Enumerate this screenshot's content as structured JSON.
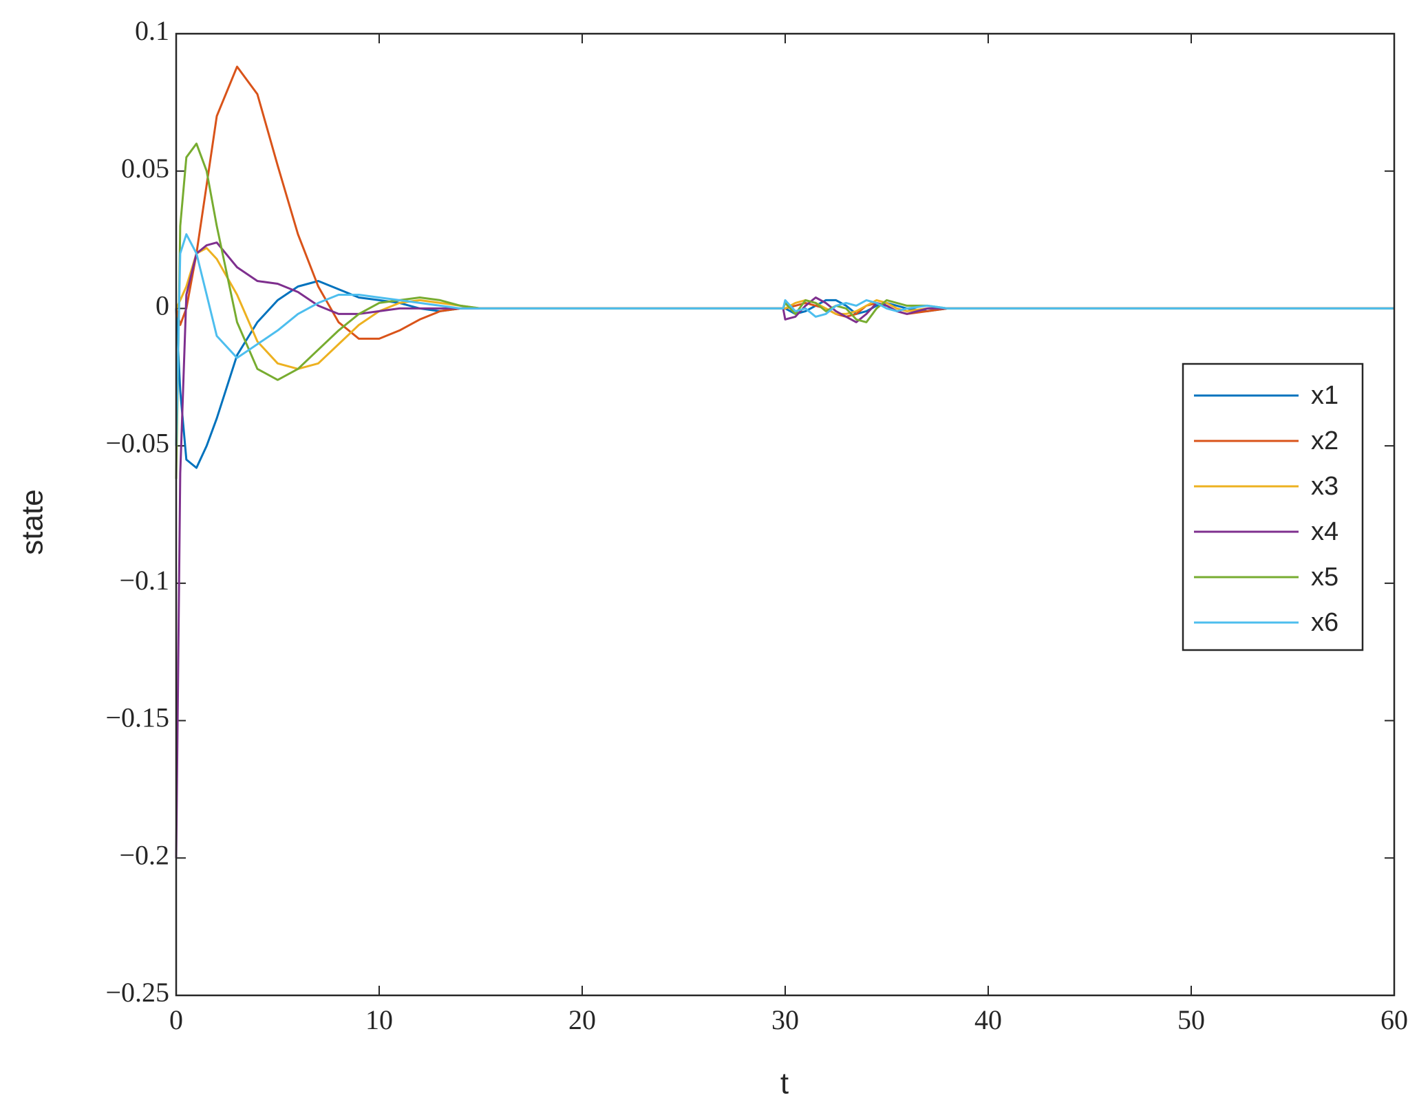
{
  "chart_data": {
    "type": "line",
    "xlabel": "t",
    "ylabel": "state",
    "xlim": [
      0,
      60
    ],
    "xticks": [
      0,
      10,
      20,
      30,
      40,
      50,
      60
    ],
    "ylim": [
      -0.25,
      0.1
    ],
    "yticks": [
      {
        "value": -0.25,
        "label": "−0.25"
      },
      {
        "value": -0.2,
        "label": "−0.2"
      },
      {
        "value": -0.15,
        "label": "−0.15"
      },
      {
        "value": -0.1,
        "label": "−0.1"
      },
      {
        "value": -0.05,
        "label": "−0.05"
      },
      0,
      0.05,
      0.1
    ],
    "legend": "right",
    "x": [
      0,
      0.2,
      0.5,
      1,
      1.5,
      2,
      3,
      4,
      5,
      6,
      7,
      8,
      9,
      10,
      11,
      12,
      13,
      14,
      15,
      20,
      29.9,
      30,
      30.5,
      31,
      31.5,
      32,
      32.5,
      33,
      33.5,
      34,
      34.5,
      35,
      35.5,
      36,
      37,
      38,
      40,
      60
    ],
    "series": [
      {
        "name": "x1",
        "color": "#0072BD",
        "values": [
          0,
          -0.03,
          -0.055,
          -0.058,
          -0.05,
          -0.04,
          -0.017,
          -0.005,
          0.003,
          0.008,
          0.01,
          0.007,
          0.004,
          0.003,
          0.002,
          0,
          -0.001,
          0,
          0,
          0,
          0,
          0,
          -0.002,
          -0.001,
          0.001,
          0.003,
          0.003,
          0.001,
          -0.002,
          -0.001,
          0.001,
          0.002,
          0.001,
          0,
          -0.001,
          0,
          0,
          0
        ]
      },
      {
        "name": "x2",
        "color": "#D95319",
        "values": [
          0,
          -0.006,
          0,
          0.02,
          0.045,
          0.07,
          0.088,
          0.078,
          0.052,
          0.027,
          0.008,
          -0.005,
          -0.011,
          -0.011,
          -0.008,
          -0.004,
          -0.001,
          0,
          0,
          0,
          0,
          0,
          0.001,
          0.002,
          0.001,
          0,
          -0.002,
          -0.003,
          -0.002,
          0.001,
          0.002,
          0.001,
          -0.001,
          -0.002,
          -0.001,
          0,
          0,
          0
        ]
      },
      {
        "name": "x3",
        "color": "#EDB120",
        "values": [
          0,
          0.003,
          0.008,
          0.02,
          0.022,
          0.018,
          0.005,
          -0.012,
          -0.02,
          -0.022,
          -0.02,
          -0.013,
          -0.006,
          -0.001,
          0.002,
          0.003,
          0.002,
          0.001,
          0,
          0,
          0,
          0,
          0.002,
          0.003,
          0.002,
          0,
          -0.002,
          -0.002,
          -0.001,
          0.001,
          0.003,
          0.002,
          0,
          -0.001,
          0,
          0,
          0,
          0
        ]
      },
      {
        "name": "x4",
        "color": "#7E2F8E",
        "values": [
          -0.2,
          -0.06,
          0.005,
          0.02,
          0.023,
          0.024,
          0.015,
          0.01,
          0.009,
          0.006,
          0.001,
          -0.002,
          -0.002,
          -0.001,
          0,
          0,
          0,
          0,
          0,
          0,
          0,
          -0.004,
          -0.003,
          0.001,
          0.004,
          0.002,
          -0.001,
          -0.003,
          -0.005,
          -0.002,
          0.002,
          0.001,
          -0.001,
          -0.002,
          0,
          0,
          0,
          0
        ]
      },
      {
        "name": "x5",
        "color": "#77AC30",
        "values": [
          -0.062,
          0.03,
          0.055,
          0.06,
          0.05,
          0.03,
          -0.005,
          -0.022,
          -0.026,
          -0.022,
          -0.015,
          -0.008,
          -0.002,
          0.002,
          0.003,
          0.004,
          0.003,
          0.001,
          0,
          0,
          0,
          0.002,
          -0.002,
          0.003,
          0.002,
          -0.001,
          0.001,
          0,
          -0.004,
          -0.005,
          0,
          0.003,
          0.002,
          0.001,
          0.001,
          0,
          0,
          0
        ]
      },
      {
        "name": "x6",
        "color": "#4DBEEE",
        "values": [
          -0.05,
          0.02,
          0.027,
          0.02,
          0.005,
          -0.01,
          -0.018,
          -0.013,
          -0.008,
          -0.002,
          0.002,
          0.005,
          0.005,
          0.004,
          0.003,
          0.002,
          0.001,
          0,
          0,
          0,
          0,
          0.003,
          -0.001,
          0,
          -0.003,
          -0.002,
          0.001,
          0.002,
          0.001,
          0.003,
          0.002,
          0,
          -0.001,
          0,
          0.001,
          0,
          0,
          0
        ]
      }
    ]
  }
}
